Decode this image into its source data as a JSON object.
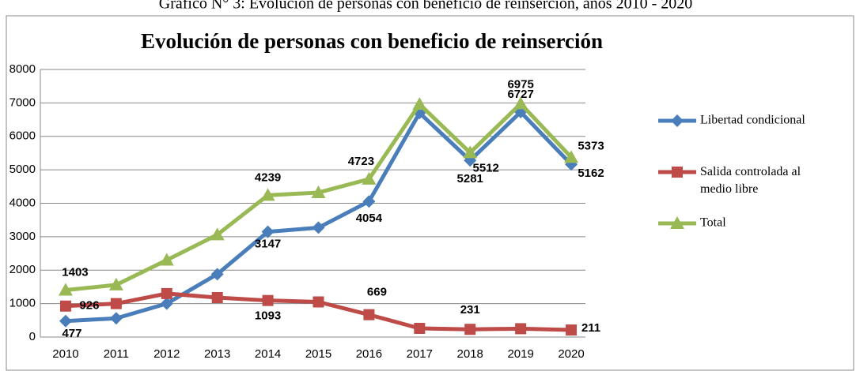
{
  "caption": "Gráfico N° 3: Evolución de personas con beneficio de reinserción, años 2010 - 2020",
  "chart_data": {
    "type": "line",
    "title": "Evolución de personas con beneficio de reinserción",
    "categories": [
      "2010",
      "2011",
      "2012",
      "2013",
      "2014",
      "2015",
      "2016",
      "2017",
      "2018",
      "2019",
      "2020"
    ],
    "series": [
      {
        "name": "Libertad condicional",
        "color": "#4a7ebb",
        "marker": "diamond",
        "values": [
          477,
          560,
          1000,
          1880,
          3147,
          3270,
          4054,
          6700,
          5281,
          6727,
          5162
        ],
        "value_labels": [
          "477",
          null,
          null,
          null,
          "3147",
          null,
          "4054",
          null,
          "5281",
          "6727",
          "5162"
        ]
      },
      {
        "name": "Salida controlada al medio libre",
        "color": "#be4b48",
        "marker": "square",
        "values": [
          926,
          1000,
          1300,
          1180,
          1093,
          1050,
          669,
          260,
          231,
          250,
          211
        ],
        "value_labels": [
          "926",
          null,
          null,
          null,
          "1093",
          null,
          "669",
          null,
          "231",
          null,
          "211"
        ]
      },
      {
        "name": "Total",
        "color": "#98b954",
        "marker": "triangle",
        "values": [
          1403,
          1560,
          2300,
          3060,
          4239,
          4320,
          4723,
          6960,
          5512,
          6975,
          5373
        ],
        "value_labels": [
          "1403",
          null,
          null,
          null,
          "4239",
          null,
          "4723",
          null,
          "5512",
          "6975",
          "5373"
        ]
      }
    ],
    "ylim": [
      0,
      8000
    ],
    "yticks": [
      0,
      1000,
      2000,
      3000,
      4000,
      5000,
      6000,
      7000,
      8000
    ],
    "grid": true,
    "legend": "right"
  }
}
